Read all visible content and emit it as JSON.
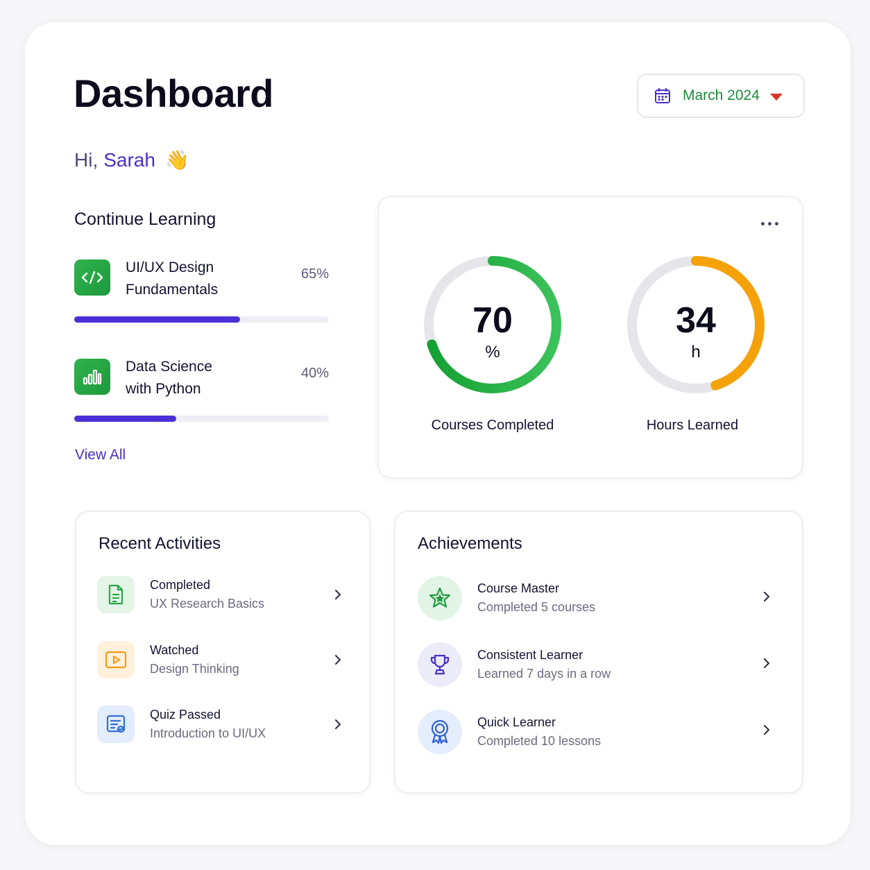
{
  "header": {
    "title": "Dashboard",
    "month": "March 2024"
  },
  "greeting": {
    "hi": "Hi,",
    "name": "Sarah",
    "emoji": "👋"
  },
  "continue_learning": {
    "title": "Continue Learning",
    "courses": [
      {
        "name_line1": "UI/UX Design",
        "name_line2": "Fundamentals",
        "percent_label": "65%",
        "progress": 0.65,
        "icon": "code-icon"
      },
      {
        "name_line1": "Data Science",
        "name_line2": "with Python",
        "percent_label": "40%",
        "progress": 0.4,
        "icon": "bar-chart-icon"
      }
    ],
    "view_all": "View All"
  },
  "stats": {
    "courses_completed": {
      "value": "70",
      "unit": "%",
      "label": "Courses Completed",
      "fraction": 0.7,
      "color": "#1fa53f"
    },
    "hours_learned": {
      "value": "34",
      "unit": "h",
      "label": "Hours Learned",
      "fraction": 0.45,
      "color": "#f5a20a"
    }
  },
  "recent_activities": {
    "title": "Recent Activities",
    "items": [
      {
        "title": "Completed",
        "subtitle": "UX Research Basics",
        "icon": "document-icon",
        "color": "#2aa84a"
      },
      {
        "title": "Watched",
        "subtitle": "Design Thinking",
        "icon": "play-icon",
        "color": "#f39a12"
      },
      {
        "title": "Quiz Passed",
        "subtitle": "Introduction to UI/UX",
        "icon": "quiz-icon",
        "color": "#2f6fd6"
      }
    ]
  },
  "achievements": {
    "title": "Achievements",
    "items": [
      {
        "title": "Course Master",
        "subtitle": "Completed 5 courses",
        "icon": "star-icon",
        "color": "#1f9a3d"
      },
      {
        "title": "Consistent Learner",
        "subtitle": "Learned 7 days in a row",
        "icon": "trophy-icon",
        "color": "#4b2fc4"
      },
      {
        "title": "Quick Learner",
        "subtitle": "Completed 10 lessons",
        "icon": "ribbon-icon",
        "color": "#2f5fd6"
      }
    ]
  }
}
